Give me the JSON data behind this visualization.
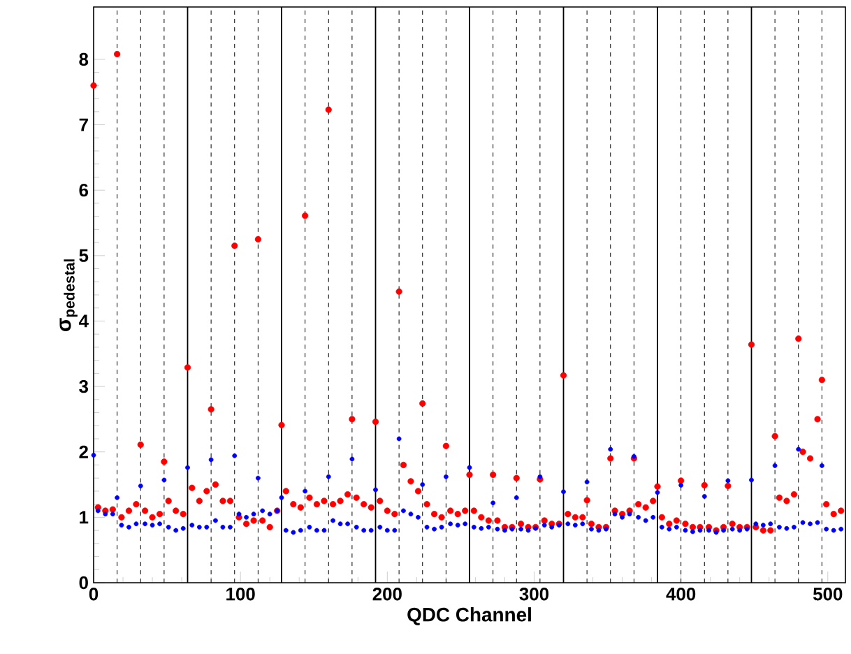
{
  "chart_data": {
    "type": "scatter",
    "xlabel": "QDC Channel",
    "ylabel": "σ$_{pedestal}$",
    "xlim": [
      0,
      512
    ],
    "ylim": [
      0,
      8.8
    ],
    "xticks": [
      0,
      100,
      200,
      300,
      400,
      500
    ],
    "yticks": [
      0,
      1,
      2,
      3,
      4,
      5,
      6,
      7,
      8
    ],
    "grid": false,
    "x": [
      0,
      3,
      8,
      13,
      16,
      19,
      24,
      29,
      32,
      35,
      40,
      45,
      48,
      51,
      56,
      61,
      64,
      67,
      72,
      77,
      80,
      83,
      88,
      93,
      96,
      99,
      104,
      109,
      112,
      115,
      120,
      125,
      128,
      131,
      136,
      141,
      144,
      147,
      152,
      157,
      160,
      163,
      168,
      173,
      176,
      179,
      184,
      189,
      192,
      195,
      200,
      205,
      208,
      211,
      216,
      221,
      224,
      227,
      232,
      237,
      240,
      243,
      248,
      253,
      256,
      259,
      264,
      269,
      272,
      275,
      280,
      285,
      288,
      291,
      296,
      301,
      304,
      307,
      312,
      317,
      320,
      323,
      328,
      333,
      336,
      339,
      344,
      349,
      352,
      355,
      360,
      365,
      368,
      371,
      376,
      381,
      384,
      387,
      392,
      397,
      400,
      403,
      408,
      413,
      416,
      419,
      424,
      429,
      432,
      435,
      440,
      445,
      448,
      451,
      456,
      461,
      464,
      467,
      472,
      477,
      480,
      483,
      488,
      493,
      496,
      499,
      504,
      509
    ],
    "series": [
      {
        "color": "#ff0000",
        "values": [
          7.6,
          1.15,
          1.1,
          1.12,
          8.08,
          1.0,
          1.1,
          1.2,
          2.11,
          1.1,
          1.0,
          1.05,
          1.85,
          1.25,
          1.1,
          1.05,
          3.29,
          1.45,
          1.25,
          1.4,
          2.65,
          1.5,
          1.25,
          1.25,
          5.15,
          1.0,
          0.9,
          0.95,
          5.25,
          0.95,
          0.85,
          1.1,
          2.41,
          1.4,
          1.2,
          1.15,
          5.61,
          1.3,
          1.2,
          1.25,
          7.23,
          1.2,
          1.25,
          1.35,
          2.5,
          1.3,
          1.2,
          1.15,
          2.46,
          1.25,
          1.1,
          1.05,
          4.45,
          1.8,
          1.55,
          1.4,
          2.74,
          1.2,
          1.05,
          1.0,
          2.09,
          1.1,
          1.05,
          1.1,
          1.65,
          1.1,
          1.0,
          0.95,
          1.65,
          0.95,
          0.85,
          0.85,
          1.6,
          0.9,
          0.85,
          0.85,
          1.58,
          0.95,
          0.9,
          0.9,
          3.17,
          1.05,
          1.0,
          1.0,
          1.26,
          0.9,
          0.85,
          0.85,
          1.9,
          1.1,
          1.05,
          1.1,
          1.9,
          1.2,
          1.15,
          1.25,
          1.47,
          1.0,
          0.9,
          0.95,
          1.56,
          0.9,
          0.85,
          0.85,
          1.49,
          0.85,
          0.8,
          0.85,
          1.48,
          0.9,
          0.85,
          0.85,
          3.64,
          0.85,
          0.8,
          0.8,
          2.24,
          1.3,
          1.25,
          1.35,
          3.73,
          2.0,
          1.9,
          2.5,
          3.1,
          1.2,
          1.05,
          1.1
        ]
      },
      {
        "color": "#0000ff",
        "values": [
          1.95,
          1.1,
          1.05,
          1.05,
          1.3,
          0.88,
          0.85,
          0.9,
          1.48,
          0.9,
          0.88,
          0.9,
          1.57,
          0.85,
          0.8,
          0.83,
          1.76,
          0.88,
          0.85,
          0.85,
          1.88,
          0.95,
          0.85,
          0.85,
          1.94,
          1.05,
          1.0,
          1.05,
          1.6,
          1.1,
          1.05,
          1.1,
          1.3,
          0.8,
          0.77,
          0.8,
          1.4,
          0.85,
          0.8,
          0.8,
          1.62,
          0.95,
          0.9,
          0.9,
          1.89,
          0.85,
          0.8,
          0.8,
          1.42,
          0.85,
          0.8,
          0.8,
          2.2,
          1.1,
          1.05,
          1.0,
          1.5,
          0.85,
          0.82,
          0.85,
          1.62,
          0.9,
          0.88,
          0.9,
          1.76,
          0.85,
          0.83,
          0.85,
          1.22,
          0.82,
          0.8,
          0.82,
          1.3,
          0.82,
          0.8,
          0.83,
          1.62,
          0.88,
          0.85,
          0.88,
          1.39,
          0.9,
          0.88,
          0.9,
          1.54,
          0.82,
          0.8,
          0.82,
          2.04,
          1.05,
          1.0,
          1.05,
          1.93,
          1.0,
          0.95,
          1.0,
          1.38,
          0.85,
          0.82,
          0.85,
          1.49,
          0.8,
          0.78,
          0.8,
          1.32,
          0.8,
          0.77,
          0.8,
          1.56,
          0.82,
          0.8,
          0.82,
          1.57,
          0.9,
          0.88,
          0.9,
          1.79,
          0.85,
          0.83,
          0.85,
          2.04,
          0.92,
          0.9,
          0.92,
          1.79,
          0.82,
          0.8,
          0.82
        ]
      }
    ],
    "ref_lines": [
      {
        "axis": "x",
        "value": 16,
        "line_style": "dashed",
        "color": "#000000"
      },
      {
        "axis": "x",
        "value": 32,
        "line_style": "dashed",
        "color": "#000000"
      },
      {
        "axis": "x",
        "value": 48,
        "line_style": "dashed",
        "color": "#000000"
      },
      {
        "axis": "x",
        "value": 64,
        "line_style": "solid",
        "color": "#000000"
      },
      {
        "axis": "x",
        "value": 80,
        "line_style": "dashed",
        "color": "#000000"
      },
      {
        "axis": "x",
        "value": 96,
        "line_style": "dashed",
        "color": "#000000"
      },
      {
        "axis": "x",
        "value": 112,
        "line_style": "dashed",
        "color": "#000000"
      },
      {
        "axis": "x",
        "value": 128,
        "line_style": "solid",
        "color": "#000000"
      },
      {
        "axis": "x",
        "value": 144,
        "line_style": "dashed",
        "color": "#000000"
      },
      {
        "axis": "x",
        "value": 160,
        "line_style": "dashed",
        "color": "#000000"
      },
      {
        "axis": "x",
        "value": 176,
        "line_style": "dashed",
        "color": "#000000"
      },
      {
        "axis": "x",
        "value": 192,
        "line_style": "solid",
        "color": "#000000"
      },
      {
        "axis": "x",
        "value": 208,
        "line_style": "dashed",
        "color": "#000000"
      },
      {
        "axis": "x",
        "value": 224,
        "line_style": "dashed",
        "color": "#000000"
      },
      {
        "axis": "x",
        "value": 240,
        "line_style": "dashed",
        "color": "#000000"
      },
      {
        "axis": "x",
        "value": 256,
        "line_style": "solid",
        "color": "#000000"
      },
      {
        "axis": "x",
        "value": 272,
        "line_style": "dashed",
        "color": "#000000"
      },
      {
        "axis": "x",
        "value": 288,
        "line_style": "dashed",
        "color": "#000000"
      },
      {
        "axis": "x",
        "value": 304,
        "line_style": "dashed",
        "color": "#000000"
      },
      {
        "axis": "x",
        "value": 320,
        "line_style": "solid",
        "color": "#000000"
      },
      {
        "axis": "x",
        "value": 336,
        "line_style": "dashed",
        "color": "#000000"
      },
      {
        "axis": "x",
        "value": 352,
        "line_style": "dashed",
        "color": "#000000"
      },
      {
        "axis": "x",
        "value": 368,
        "line_style": "dashed",
        "color": "#000000"
      },
      {
        "axis": "x",
        "value": 384,
        "line_style": "solid",
        "color": "#000000"
      },
      {
        "axis": "x",
        "value": 400,
        "line_style": "dashed",
        "color": "#000000"
      },
      {
        "axis": "x",
        "value": 416,
        "line_style": "dashed",
        "color": "#000000"
      },
      {
        "axis": "x",
        "value": 432,
        "line_style": "dashed",
        "color": "#000000"
      },
      {
        "axis": "x",
        "value": 448,
        "line_style": "solid",
        "color": "#000000"
      },
      {
        "axis": "x",
        "value": 464,
        "line_style": "dashed",
        "color": "#000000"
      },
      {
        "axis": "x",
        "value": 480,
        "line_style": "dashed",
        "color": "#000000"
      },
      {
        "axis": "x",
        "value": 496,
        "line_style": "dashed",
        "color": "#000000"
      }
    ]
  }
}
